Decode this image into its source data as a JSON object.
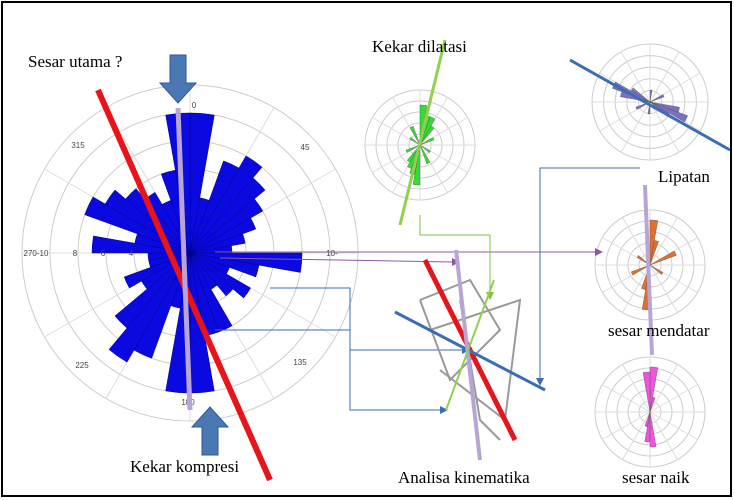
{
  "labels": {
    "main_fault": "Sesar utama ?",
    "dilation_joint": "Kekar dilatasi",
    "fold": "Lipatan",
    "strike_slip": "sesar mendatar",
    "thrust": "sesar naik",
    "compression_joint": "Kekar kompresi",
    "kinematics": "Analisa kinematika"
  },
  "rose": {
    "axis_labels": [
      "0",
      "45",
      "135",
      "180",
      "225",
      "315",
      "270-10",
      "10-"
    ],
    "ring_labels": [
      "8",
      "6",
      "4"
    ],
    "bin_width": 10,
    "petals": [
      10,
      4,
      7,
      8,
      7,
      6,
      5,
      4,
      3,
      8,
      5,
      3,
      5,
      4,
      3,
      6,
      6,
      10,
      10,
      4,
      8,
      9,
      7,
      4,
      5,
      3,
      3,
      7,
      4,
      8,
      7,
      6,
      5,
      4,
      6,
      10
    ]
  }
}
